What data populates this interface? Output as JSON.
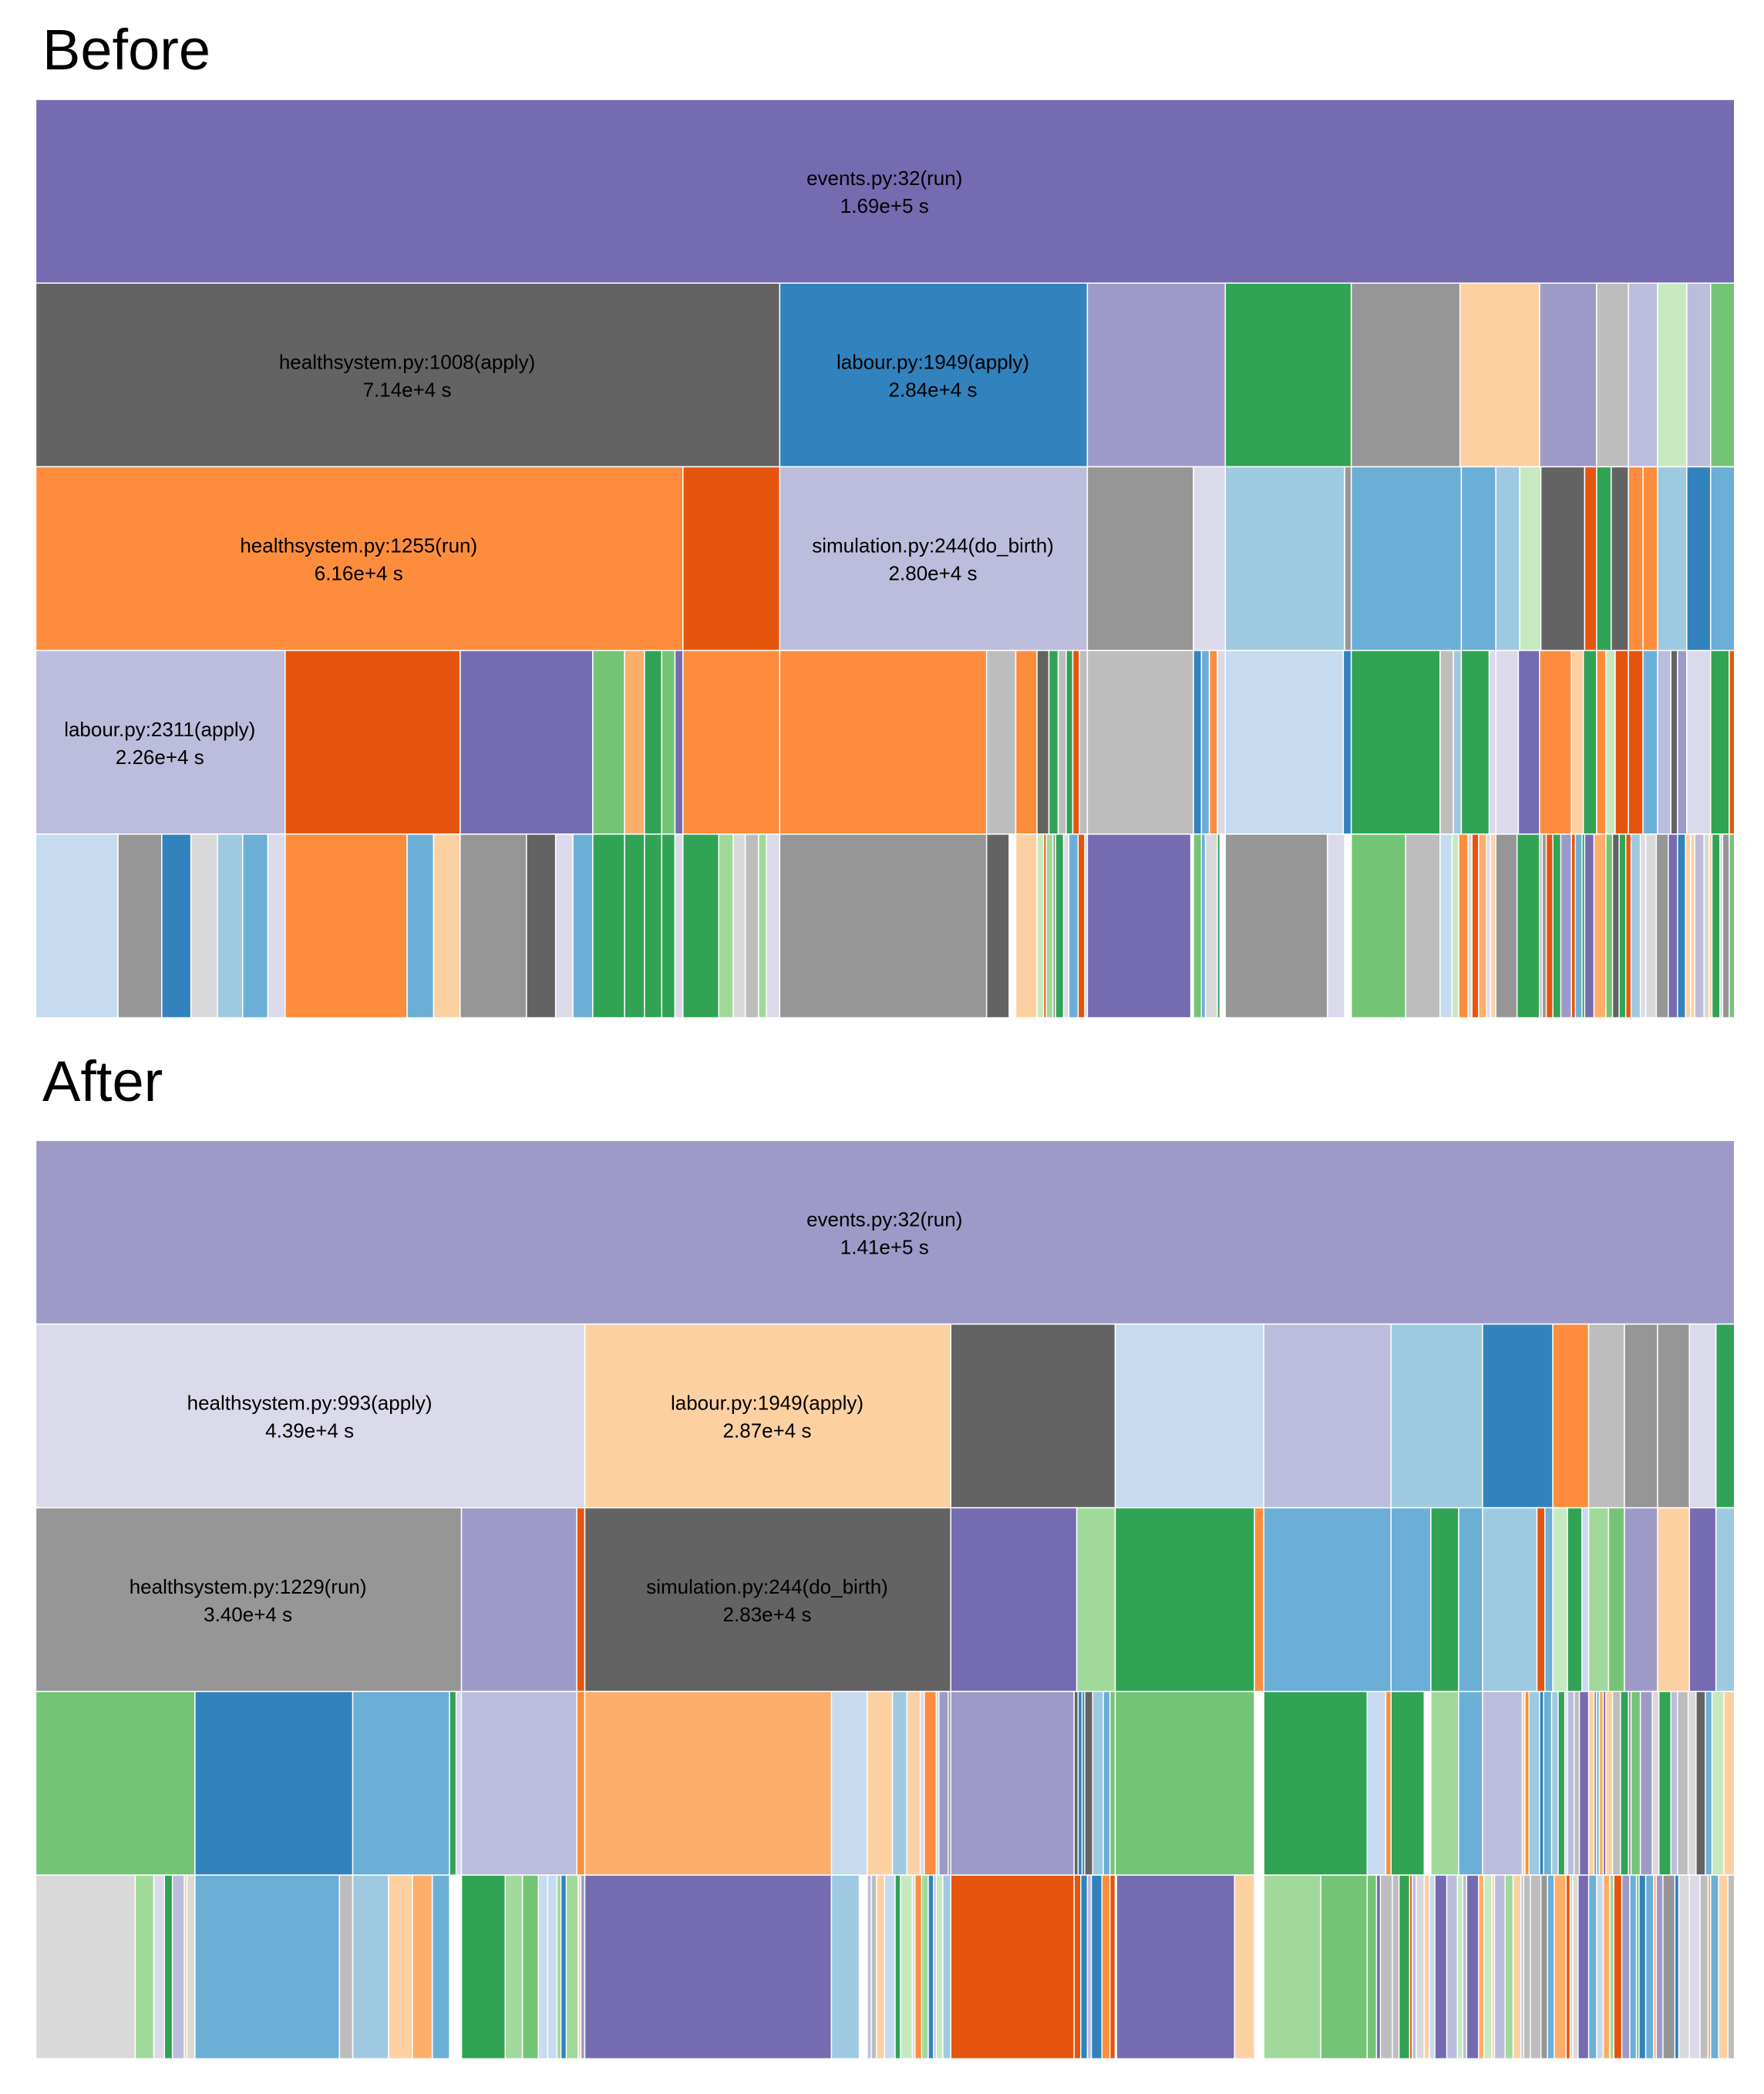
{
  "chart_data": [
    {
      "type": "icicle",
      "title": "Before",
      "unit": "s",
      "palette": [
        "#3182bd",
        "#6baed6",
        "#9ecae1",
        "#c6dbef",
        "#e6550d",
        "#fd8d3c",
        "#fdae6b",
        "#fdd0a2",
        "#31a354",
        "#74c476",
        "#a1d99b",
        "#c7e9c0",
        "#756bb1",
        "#9e9ac8",
        "#bcbddc",
        "#dadaeb",
        "#636363",
        "#969696",
        "#bdbdbd",
        "#d9d9d9"
      ],
      "nodes": [
        {
          "name": "events.py:32(run)",
          "time_label": "1.69e+5 s",
          "value": 169000,
          "depth": 0,
          "color": "#756bb1"
        },
        {
          "name": "healthsystem.py:1008(apply)",
          "time_label": "7.14e+4 s",
          "value": 71400,
          "depth": 1,
          "color": "#636363"
        },
        {
          "name": "labour.py:1949(apply)",
          "time_label": "2.84e+4 s",
          "value": 28400,
          "depth": 1,
          "color": "#3182bd"
        },
        {
          "name": "healthsystem.py:1255(run)",
          "time_label": "6.16e+4 s",
          "value": 61600,
          "depth": 2,
          "color": "#fd8d3c"
        },
        {
          "name": "simulation.py:244(do_birth)",
          "time_label": "2.80e+4 s",
          "value": 28000,
          "depth": 2,
          "color": "#bcbddc"
        },
        {
          "name": "labour.py:2311(apply)",
          "time_label": "2.26e+4 s",
          "value": 22600,
          "depth": 3,
          "color": "#bcbddc"
        }
      ]
    },
    {
      "type": "icicle",
      "title": "After",
      "unit": "s",
      "nodes": [
        {
          "name": "events.py:32(run)",
          "time_label": "1.41e+5 s",
          "value": 141000,
          "depth": 0,
          "color": "#9e9ac8"
        },
        {
          "name": "healthsystem.py:993(apply)",
          "time_label": "4.39e+4 s",
          "value": 43900,
          "depth": 1,
          "color": "#dadaeb"
        },
        {
          "name": "labour.py:1949(apply)",
          "time_label": "2.87e+4 s",
          "value": 28700,
          "depth": 1,
          "color": "#fdd0a2"
        },
        {
          "name": "healthsystem.py:1229(run)",
          "time_label": "3.40e+4 s",
          "value": 34000,
          "depth": 2,
          "color": "#969696"
        },
        {
          "name": "simulation.py:244(do_birth)",
          "time_label": "2.83e+4 s",
          "value": 28300,
          "depth": 2,
          "color": "#636363"
        }
      ]
    }
  ]
}
